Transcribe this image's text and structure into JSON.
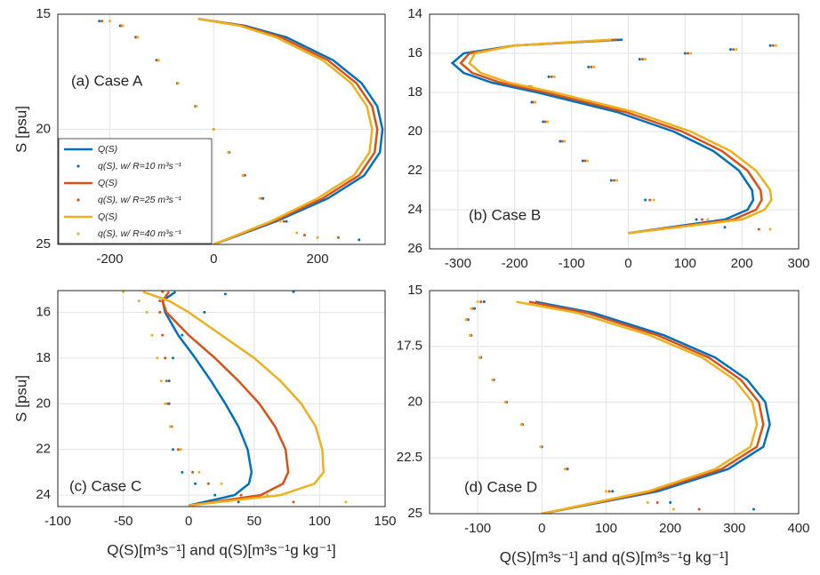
{
  "chart_data": [
    {
      "type": "line",
      "title": "(a) Case A",
      "ylabel": "S [psu]",
      "xlim": [
        -300,
        330
      ],
      "ylim": [
        15,
        25
      ],
      "y_reversed": true,
      "xticks": [
        -200,
        0,
        200
      ],
      "yticks": [
        15,
        20,
        25
      ],
      "grid": true,
      "legend": "lower left",
      "series": [
        {
          "name": "Q(S)",
          "mode": "lines",
          "color": "#0072bd",
          "x": [
            -30,
            60,
            140,
            230,
            285,
            315,
            325,
            320,
            290,
            220,
            120,
            0
          ],
          "values": [
            15.2,
            15.5,
            16,
            17,
            18,
            19,
            20,
            21,
            22,
            23,
            24,
            25
          ]
        },
        {
          "name": "q(S), w/  R=10 m³s⁻¹",
          "mode": "markers",
          "color": "#0072bd",
          "x": [
            -220,
            -180,
            -150,
            -110,
            -70,
            -35,
            0,
            30,
            60,
            95,
            140,
            200,
            280
          ],
          "values": [
            15.3,
            15.5,
            16,
            17,
            18,
            19,
            20,
            21,
            22,
            23,
            24,
            24.7,
            24.8
          ]
        },
        {
          "name": "Q(S)",
          "mode": "lines",
          "color": "#d95319",
          "x": [
            -30,
            55,
            130,
            220,
            275,
            305,
            315,
            310,
            280,
            210,
            115,
            0
          ],
          "values": [
            15.2,
            15.5,
            16,
            17,
            18,
            19,
            20,
            21,
            22,
            23,
            24,
            25
          ]
        },
        {
          "name": "q(S), w/  R=25 m³s⁻¹",
          "mode": "markers",
          "color": "#d95319",
          "x": [
            -215,
            -178,
            -148,
            -108,
            -69,
            -34,
            0,
            29,
            58,
            92,
            135,
            175,
            240
          ],
          "values": [
            15.3,
            15.5,
            16,
            17,
            18,
            19,
            20,
            21,
            22,
            23,
            24,
            24.6,
            24.7
          ]
        },
        {
          "name": "Q(S)",
          "mode": "lines",
          "color": "#edb120",
          "x": [
            -30,
            50,
            120,
            210,
            265,
            295,
            305,
            300,
            270,
            200,
            110,
            0
          ],
          "values": [
            15.2,
            15.5,
            16,
            17,
            18,
            19,
            20,
            21,
            22,
            23,
            24,
            25
          ]
        },
        {
          "name": "q(S), w/  R=40 m³s⁻¹",
          "mode": "markers",
          "color": "#edb120",
          "x": [
            -200,
            -175,
            -146,
            -106,
            -68,
            -33,
            0,
            28,
            56,
            89,
            128,
            160,
            200
          ],
          "values": [
            15.3,
            15.5,
            16,
            17,
            18,
            19,
            20,
            21,
            22,
            23,
            24,
            24.5,
            24.7
          ]
        }
      ]
    },
    {
      "type": "line",
      "title": "(b) Case B",
      "xlim": [
        -350,
        300
      ],
      "ylim": [
        14,
        26
      ],
      "y_reversed": true,
      "xticks": [
        -300,
        -200,
        -100,
        0,
        100,
        200,
        300
      ],
      "yticks": [
        14,
        16,
        18,
        20,
        22,
        24,
        26
      ],
      "grid": true,
      "series": [
        {
          "mode": "lines",
          "color": "#0072bd",
          "x": [
            -10,
            -200,
            -290,
            -310,
            -290,
            -240,
            -160,
            -20,
            80,
            150,
            195,
            218,
            220,
            210,
            170,
            0
          ],
          "values": [
            15.3,
            15.6,
            16,
            16.5,
            17,
            17.5,
            18,
            19,
            20,
            21,
            22,
            23,
            23.5,
            24,
            24.5,
            25.2
          ]
        },
        {
          "mode": "markers",
          "color": "#0072bd",
          "x": [
            250,
            180,
            100,
            20,
            -70,
            -140,
            -175,
            -170,
            -150,
            -120,
            -80,
            -30,
            30,
            120,
            170
          ],
          "values": [
            15.6,
            15.8,
            16,
            16.3,
            16.7,
            17.2,
            17.7,
            18.5,
            19.5,
            20.5,
            21.5,
            22.5,
            23.5,
            24.5,
            24.9
          ]
        },
        {
          "mode": "lines",
          "color": "#d95319",
          "x": [
            -20,
            -200,
            -280,
            -295,
            -275,
            -225,
            -145,
            -5,
            95,
            165,
            210,
            233,
            235,
            225,
            185,
            0
          ],
          "values": [
            15.3,
            15.6,
            16,
            16.5,
            17,
            17.5,
            18,
            19,
            20,
            21,
            22,
            23,
            23.5,
            24,
            24.5,
            25.2
          ]
        },
        {
          "mode": "markers",
          "color": "#d95319",
          "x": [
            255,
            185,
            105,
            25,
            -65,
            -135,
            -172,
            -167,
            -146,
            -116,
            -76,
            -25,
            38,
            130,
            230
          ],
          "values": [
            15.6,
            15.8,
            16,
            16.3,
            16.7,
            17.2,
            17.7,
            18.5,
            19.5,
            20.5,
            21.5,
            22.5,
            23.5,
            24.5,
            25
          ]
        },
        {
          "mode": "lines",
          "color": "#edb120",
          "x": [
            -30,
            -200,
            -270,
            -280,
            -260,
            -210,
            -130,
            10,
            110,
            180,
            225,
            250,
            252,
            240,
            200,
            0
          ],
          "values": [
            15.3,
            15.6,
            16,
            16.5,
            17,
            17.5,
            18,
            19,
            20,
            21,
            22,
            23,
            23.5,
            24,
            24.5,
            25.2
          ]
        },
        {
          "mode": "markers",
          "color": "#edb120",
          "x": [
            260,
            190,
            110,
            30,
            -60,
            -130,
            -170,
            -164,
            -142,
            -112,
            -72,
            -20,
            45,
            140,
            250
          ],
          "values": [
            15.6,
            15.8,
            16,
            16.3,
            16.7,
            17.2,
            17.7,
            18.5,
            19.5,
            20.5,
            21.5,
            22.5,
            23.5,
            24.5,
            25
          ]
        }
      ]
    },
    {
      "type": "line",
      "title": "(c) Case C",
      "ylabel": "S [psu]",
      "xlabel": "Q(S)[m³s⁻¹]  and  q(S)[m³s⁻¹g kg⁻¹]",
      "xlim": [
        -100,
        150
      ],
      "ylim": [
        15.05,
        24.5
      ],
      "y_reversed": true,
      "xticks": [
        -100,
        -50,
        0,
        50,
        100,
        150
      ],
      "yticks": [
        16,
        18,
        20,
        22,
        24
      ],
      "grid": true,
      "series": [
        {
          "mode": "lines",
          "color": "#0072bd",
          "x": [
            -10,
            -20,
            -18,
            -8,
            5,
            17,
            28,
            38,
            45,
            48,
            46,
            35,
            0
          ],
          "values": [
            15.1,
            15.5,
            16,
            17,
            18,
            19,
            20,
            21,
            22,
            23,
            23.5,
            24,
            24.45
          ]
        },
        {
          "mode": "markers",
          "color": "#0072bd",
          "x": [
            80,
            28,
            12,
            -5,
            -12,
            -15,
            -15,
            -14,
            -12,
            -5,
            5,
            20,
            38
          ],
          "values": [
            15.1,
            15.2,
            16,
            17,
            18,
            19,
            20,
            21,
            22,
            23,
            23.5,
            24,
            24.3
          ]
        },
        {
          "mode": "lines",
          "color": "#d95319",
          "x": [
            -15,
            -20,
            -17,
            0,
            20,
            38,
            54,
            66,
            74,
            76,
            72,
            55,
            0
          ],
          "values": [
            15.1,
            15.5,
            16,
            17,
            18,
            19,
            20,
            21,
            22,
            23,
            23.5,
            24,
            24.45
          ]
        },
        {
          "mode": "markers",
          "color": "#d95319",
          "x": [
            -20,
            -22,
            -22,
            -20,
            -18,
            -17,
            -16,
            -13,
            -8,
            3,
            15,
            40,
            80
          ],
          "values": [
            15.1,
            15.5,
            16,
            17,
            18,
            19,
            20,
            21,
            22,
            23,
            23.5,
            24,
            24.3
          ]
        },
        {
          "mode": "lines",
          "color": "#edb120",
          "x": [
            -35,
            -15,
            0,
            25,
            50,
            70,
            86,
            97,
            102,
            103,
            96,
            70,
            0
          ],
          "values": [
            15.1,
            15.5,
            16,
            17,
            18,
            19,
            20,
            21,
            22,
            23,
            23.5,
            24,
            24.45
          ]
        },
        {
          "mode": "markers",
          "color": "#edb120",
          "x": [
            -50,
            -38,
            -32,
            -28,
            -24,
            -21,
            -18,
            -14,
            -6,
            8,
            25,
            60,
            120
          ],
          "values": [
            15.1,
            15.5,
            16,
            17,
            18,
            19,
            20,
            21,
            22,
            23,
            23.5,
            24,
            24.3
          ]
        }
      ]
    },
    {
      "type": "line",
      "title": "(d) Case D",
      "xlabel": "Q(S)[m³s⁻¹]  and  q(S)[m³s⁻¹g kg⁻¹]",
      "xlim": [
        -175,
        400
      ],
      "ylim": [
        15,
        25
      ],
      "y_reversed": true,
      "xticks": [
        -100,
        0,
        100,
        200,
        300,
        400
      ],
      "yticks": [
        15,
        17.5,
        20,
        22.5,
        25
      ],
      "grid": true,
      "series": [
        {
          "mode": "lines",
          "color": "#0072bd",
          "x": [
            -10,
            80,
            190,
            270,
            320,
            348,
            355,
            345,
            290,
            180,
            0
          ],
          "values": [
            15.5,
            16,
            17,
            18,
            19,
            20,
            21,
            22,
            23,
            24,
            25
          ]
        },
        {
          "mode": "markers",
          "color": "#0072bd",
          "x": [
            -90,
            -105,
            -115,
            -110,
            -95,
            -75,
            -55,
            -30,
            0,
            40,
            110,
            200,
            330
          ],
          "values": [
            15.5,
            15.8,
            16.3,
            17,
            18,
            19,
            20,
            21,
            22,
            23,
            24,
            24.5,
            24.8
          ]
        },
        {
          "mode": "lines",
          "color": "#d95319",
          "x": [
            -20,
            70,
            180,
            260,
            310,
            338,
            345,
            335,
            280,
            172,
            0
          ],
          "values": [
            15.5,
            16,
            17,
            18,
            19,
            20,
            21,
            22,
            23,
            24,
            25
          ]
        },
        {
          "mode": "markers",
          "color": "#d95319",
          "x": [
            -95,
            -108,
            -117,
            -111,
            -96,
            -76,
            -56,
            -31,
            -1,
            38,
            105,
            180,
            245
          ],
          "values": [
            15.5,
            15.8,
            16.3,
            17,
            18,
            19,
            20,
            21,
            22,
            23,
            24,
            24.5,
            24.8
          ]
        },
        {
          "mode": "lines",
          "color": "#edb120",
          "x": [
            -40,
            55,
            168,
            250,
            300,
            328,
            335,
            325,
            270,
            165,
            0
          ],
          "values": [
            15.5,
            16,
            17,
            18,
            19,
            20,
            21,
            22,
            23,
            24,
            25
          ]
        },
        {
          "mode": "markers",
          "color": "#edb120",
          "x": [
            -100,
            -110,
            -118,
            -112,
            -97,
            -77,
            -57,
            -32,
            -2,
            36,
            100,
            165,
            205
          ],
          "values": [
            15.5,
            15.8,
            16.3,
            17,
            18,
            19,
            20,
            21,
            22,
            23,
            24,
            24.5,
            24.8
          ]
        }
      ]
    }
  ]
}
